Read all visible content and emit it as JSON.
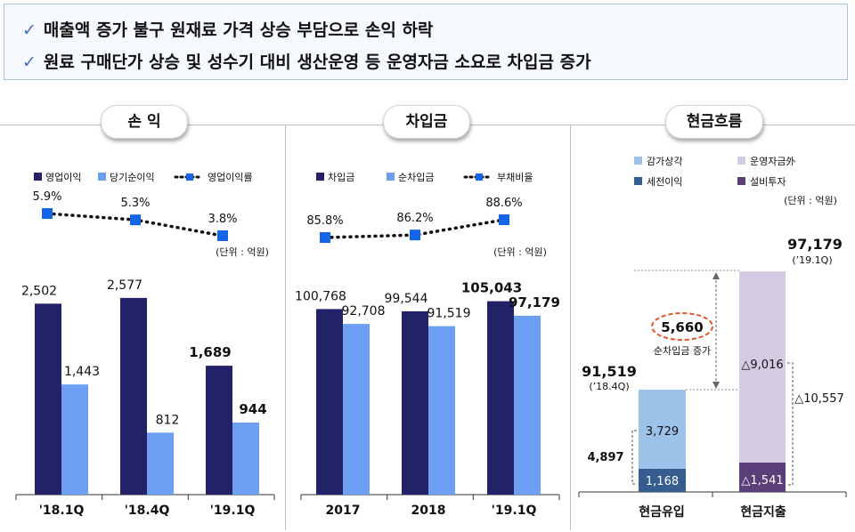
{
  "summary": {
    "line1": "매출액 증가 불구 원재료 가격 상승 부담으로 손익 하락",
    "line2": "원료 구매단가 상승 및 성수기 대비 생산운영 등 운영자금 소요로 차입금 증가",
    "check_icon": "checkmark-icon"
  },
  "colors": {
    "dark": "#232268",
    "light": "#6c9ef2",
    "marker": "#1565e8",
    "inflow_top": "#9dc2ea",
    "inflow_bottom": "#355d8f",
    "outflow_top": "#d4cbe3",
    "outflow_bottom": "#5a3f78",
    "highlight": "#e8562a"
  },
  "chart_data": [
    {
      "id": "profit",
      "type": "bar",
      "title": "손 익",
      "unit_note": "(단위 : 억원)",
      "categories": [
        "'18.1Q",
        "'18.4Q",
        "'19.1Q"
      ],
      "series": [
        {
          "name": "영업이익",
          "values": [
            2502,
            2577,
            1689
          ],
          "labels": [
            "2,502",
            "2,577",
            "1,689"
          ]
        },
        {
          "name": "당기순이익",
          "values": [
            1443,
            812,
            944
          ],
          "labels": [
            "1,443",
            "812",
            "944"
          ]
        }
      ],
      "line_series": {
        "name": "영업이익률",
        "values": [
          5.9,
          5.3,
          3.8
        ],
        "labels": [
          "5.9%",
          "5.3%",
          "3.8%"
        ]
      },
      "ylim": [
        0,
        2800
      ]
    },
    {
      "id": "debt",
      "type": "bar",
      "title": "차입금",
      "unit_note": "(단위 : 억원)",
      "categories": [
        "2017",
        "2018",
        "'19.1Q"
      ],
      "series": [
        {
          "name": "차입금",
          "values": [
            100768,
            99544,
            105043
          ],
          "labels": [
            "100,768",
            "99,544",
            "105,043"
          ]
        },
        {
          "name": "순차입금",
          "values": [
            92708,
            91519,
            97179
          ],
          "labels": [
            "92,708",
            "91,519",
            "97,179"
          ]
        }
      ],
      "line_series": {
        "name": "부채비율",
        "values": [
          85.8,
          86.2,
          88.6
        ],
        "labels": [
          "85.8%",
          "86.2%",
          "88.6%"
        ]
      }
    },
    {
      "id": "cashflow",
      "type": "bar",
      "title": "현금흐름",
      "unit_note": "(단위 : 억원)",
      "legend": [
        "감가상각",
        "운영자금外",
        "세전이익",
        "설비투자"
      ],
      "categories": [
        "현금유입",
        "현금지출"
      ],
      "inflow": {
        "total": 91519,
        "total_label": "91,519",
        "period_label": "(’18.4Q)",
        "segments": [
          {
            "name": "세전이익",
            "value": 1168,
            "label": "1,168"
          },
          {
            "name": "감가상각",
            "value": 3729,
            "label": "3,729"
          }
        ],
        "sum_label": "4,897"
      },
      "outflow": {
        "total": 97179,
        "total_label": "97,179",
        "period_label": "(’19.1Q)",
        "segments": [
          {
            "name": "설비투자",
            "value": 1541,
            "label": "△1,541"
          },
          {
            "name": "운영자금外",
            "value": 9016,
            "label": "△9,016"
          }
        ],
        "sum_label": "△10,557"
      },
      "annotation": {
        "value": "5,660",
        "text": "순차입금 증가"
      }
    }
  ]
}
